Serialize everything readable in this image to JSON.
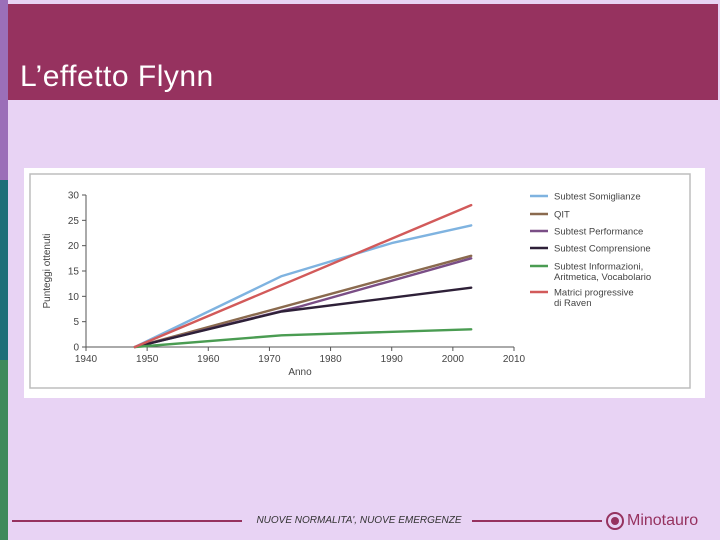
{
  "slide": {
    "title": "L’effetto Flynn",
    "footer": "NUOVE NORMALITA', NUOVE EMERGENZE",
    "logo": "Minotauro",
    "colors": {
      "title_bar": "#96325f",
      "background": "#e8d3f4"
    }
  },
  "chart_data": {
    "type": "line",
    "title": "",
    "xlabel": "Anno",
    "ylabel": "Punteggi ottenuti",
    "xlim": [
      1940,
      2010
    ],
    "ylim": [
      0,
      30
    ],
    "x_ticks": [
      1940,
      1950,
      1960,
      1970,
      1980,
      1990,
      2000,
      2010
    ],
    "y_ticks": [
      0,
      5,
      10,
      15,
      20,
      25,
      30
    ],
    "grid": false,
    "legend_position": "right",
    "series": [
      {
        "name": "Subtest Somiglianze",
        "color": "#7fb3e0",
        "points": [
          [
            1948,
            0
          ],
          [
            1972,
            14
          ],
          [
            1990,
            20.5
          ],
          [
            2003,
            24
          ]
        ]
      },
      {
        "name": "QIT",
        "color": "#8a6a4e",
        "points": [
          [
            1948,
            0
          ],
          [
            2003,
            18
          ]
        ]
      },
      {
        "name": "Subtest Performance",
        "color": "#7a4e86",
        "points": [
          [
            1948,
            0
          ],
          [
            1975,
            8
          ],
          [
            2003,
            17.5
          ]
        ]
      },
      {
        "name": "Subtest Comprensione",
        "color": "#2e2038",
        "points": [
          [
            1948,
            0
          ],
          [
            1972,
            7
          ],
          [
            2003,
            11.7
          ]
        ]
      },
      {
        "name": "Subtest Informazioni, Aritmetica, Vocabolario",
        "color": "#4a9c52",
        "points": [
          [
            1948,
            0
          ],
          [
            1972,
            2.3
          ],
          [
            2003,
            3.5
          ]
        ]
      },
      {
        "name": "Matrici progressive di Raven",
        "color": "#d25a5a",
        "points": [
          [
            1948,
            0
          ],
          [
            2003,
            28
          ]
        ]
      }
    ]
  }
}
